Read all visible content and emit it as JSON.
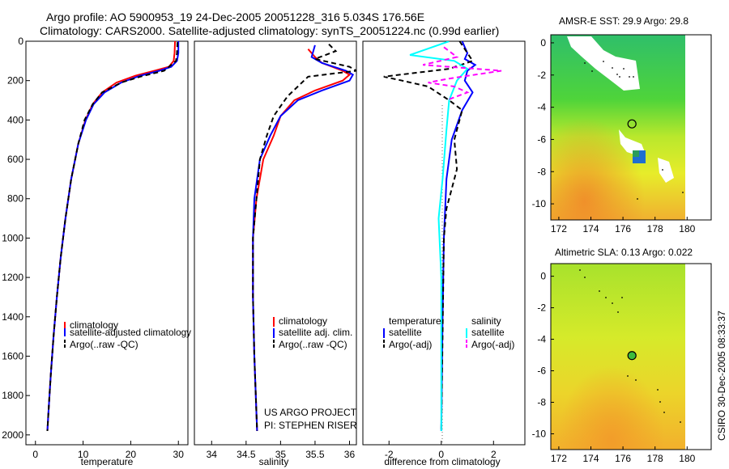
{
  "figure": {
    "title_line1": "Argo profile: AO 5900953_19 24-Dec-2005 20051228_316 5.034S 176.56E",
    "title_line2": "Climatology: CARS2000. Satellite-adjusted climatology: synTS_20051224.nc (0.99d earlier)",
    "credit": "CSIRO 30-Dec-2005 08:33:37",
    "project_line1": "US ARGO PROJECT",
    "project_line2": "PI: STEPHEN RISER"
  },
  "colors": {
    "climatology": "#ff0000",
    "satellite": "#0000ff",
    "argo": "#000000",
    "sat_diff_sal": "#00ffff",
    "argo_diff_sal": "#ff00ff"
  },
  "chart_data": [
    {
      "id": "temperature",
      "type": "line",
      "xlabel": "temperature",
      "ylabel": "",
      "xlim": [
        -2,
        32
      ],
      "ylim": [
        2050,
        0
      ],
      "xticks": [
        0,
        10,
        20,
        30
      ],
      "yticks": [
        0,
        200,
        400,
        600,
        800,
        1000,
        1200,
        1400,
        1600,
        1800,
        2000
      ],
      "legend": [
        "climatology",
        "satellite-adjusted climatology",
        "Argo(..raw -QC)"
      ],
      "series": [
        {
          "name": "climatology",
          "color": "#ff0000",
          "dash": "",
          "points": [
            [
              29.3,
              0
            ],
            [
              29.2,
              60
            ],
            [
              29.0,
              100
            ],
            [
              28,
              130
            ],
            [
              25,
              150
            ],
            [
              21,
              175
            ],
            [
              17,
              210
            ],
            [
              14,
              260
            ],
            [
              12,
              320
            ],
            [
              10.5,
              400
            ],
            [
              9.0,
              520
            ],
            [
              7.5,
              700
            ],
            [
              6.3,
              900
            ],
            [
              5.3,
              1100
            ],
            [
              4.5,
              1300
            ],
            [
              3.8,
              1500
            ],
            [
              3.2,
              1700
            ],
            [
              2.7,
              1900
            ],
            [
              2.5,
              1980
            ]
          ]
        },
        {
          "name": "satellite-adjusted climatology",
          "color": "#0000ff",
          "dash": "",
          "points": [
            [
              30.0,
              0
            ],
            [
              30.0,
              60
            ],
            [
              29.7,
              100
            ],
            [
              28.5,
              130
            ],
            [
              26,
              150
            ],
            [
              22,
              175
            ],
            [
              18,
              210
            ],
            [
              14.5,
              260
            ],
            [
              12.2,
              320
            ],
            [
              10.6,
              400
            ],
            [
              9.0,
              520
            ],
            [
              7.5,
              700
            ],
            [
              6.3,
              900
            ],
            [
              5.3,
              1100
            ],
            [
              4.5,
              1300
            ],
            [
              3.8,
              1500
            ],
            [
              3.2,
              1700
            ],
            [
              2.7,
              1900
            ],
            [
              2.5,
              1980
            ]
          ]
        },
        {
          "name": "Argo(..raw -QC)",
          "color": "#000000",
          "dash": "6,4",
          "points": [
            [
              29.8,
              5
            ],
            [
              29.7,
              60
            ],
            [
              29.5,
              100
            ],
            [
              27,
              150
            ],
            [
              22,
              180
            ],
            [
              18,
              210
            ],
            [
              14,
              260
            ],
            [
              12,
              320
            ],
            [
              10.3,
              400
            ],
            [
              9.0,
              520
            ],
            [
              7.5,
              700
            ],
            [
              6.3,
              900
            ],
            [
              5.3,
              1100
            ],
            [
              4.5,
              1300
            ],
            [
              3.8,
              1500
            ],
            [
              3.2,
              1700
            ],
            [
              2.7,
              1900
            ],
            [
              2.5,
              1980
            ]
          ]
        }
      ]
    },
    {
      "id": "salinity",
      "type": "line",
      "xlabel": "salinity",
      "ylabel": "",
      "xlim": [
        33.75,
        36.1
      ],
      "ylim": [
        2050,
        0
      ],
      "xticks": [
        34,
        34.5,
        35,
        35.5,
        36
      ],
      "yticks": [],
      "legend": [
        "climatology",
        "satellite adj. clim.",
        "Argo(..raw -QC)"
      ],
      "series": [
        {
          "name": "climatology",
          "color": "#ff0000",
          "dash": "",
          "points": [
            [
              35.4,
              40
            ],
            [
              35.5,
              80
            ],
            [
              35.6,
              110
            ],
            [
              35.9,
              150
            ],
            [
              36.0,
              170
            ],
            [
              35.9,
              200
            ],
            [
              35.5,
              250
            ],
            [
              35.2,
              300
            ],
            [
              35.0,
              380
            ],
            [
              34.9,
              480
            ],
            [
              34.75,
              600
            ],
            [
              34.65,
              800
            ],
            [
              34.6,
              1000
            ],
            [
              34.6,
              1300
            ],
            [
              34.62,
              1600
            ],
            [
              34.66,
              1980
            ]
          ]
        },
        {
          "name": "satellite adj. clim.",
          "color": "#0000ff",
          "dash": "",
          "points": [
            [
              35.5,
              20
            ],
            [
              35.45,
              80
            ],
            [
              35.6,
              110
            ],
            [
              35.95,
              150
            ],
            [
              36.05,
              170
            ],
            [
              36.0,
              200
            ],
            [
              35.6,
              250
            ],
            [
              35.25,
              300
            ],
            [
              35.0,
              380
            ],
            [
              34.85,
              480
            ],
            [
              34.7,
              600
            ],
            [
              34.62,
              800
            ],
            [
              34.6,
              1000
            ],
            [
              34.6,
              1300
            ],
            [
              34.62,
              1600
            ],
            [
              34.66,
              1980
            ]
          ]
        },
        {
          "name": "Argo(..raw -QC)",
          "color": "#000000",
          "dash": "6,4",
          "points": [
            [
              35.7,
              15
            ],
            [
              35.8,
              50
            ],
            [
              35.5,
              90
            ],
            [
              36.0,
              130
            ],
            [
              36.1,
              150
            ],
            [
              35.4,
              180
            ],
            [
              35.1,
              280
            ],
            [
              34.9,
              380
            ],
            [
              34.8,
              480
            ],
            [
              34.7,
              600
            ],
            [
              34.65,
              800
            ],
            [
              34.6,
              1000
            ],
            [
              34.6,
              1300
            ],
            [
              34.62,
              1600
            ],
            [
              34.66,
              1980
            ]
          ]
        }
      ]
    },
    {
      "id": "difference",
      "type": "line",
      "xlabel": "difference from climatology",
      "ylabel": "",
      "xlim": [
        -3.0,
        3.2
      ],
      "ylim": [
        2050,
        0
      ],
      "xticks": [
        -2,
        0,
        2
      ],
      "yticks": [],
      "legend_temperature_title": "temperature",
      "legend_salinity_title": "salinity",
      "legend_entries": [
        "satellite",
        "Argo(-adj)",
        "satellite",
        "Argo(-adj)"
      ],
      "series": [
        {
          "name": "temperature satellite",
          "color": "#0000ff",
          "dash": "",
          "points": [
            [
              0.8,
              0
            ],
            [
              1.0,
              60
            ],
            [
              0.9,
              90
            ],
            [
              1.3,
              120
            ],
            [
              1.0,
              150
            ],
            [
              0.9,
              200
            ],
            [
              1.2,
              260
            ],
            [
              0.8,
              350
            ],
            [
              0.4,
              500
            ],
            [
              0.2,
              700
            ],
            [
              0.1,
              1000
            ],
            [
              0.05,
              1400
            ],
            [
              0,
              1980
            ]
          ]
        },
        {
          "name": "temperature Argo(-adj)",
          "color": "#000000",
          "dash": "6,4",
          "points": [
            [
              0.7,
              0
            ],
            [
              1.2,
              100
            ],
            [
              0.3,
              140
            ],
            [
              -2.2,
              180
            ],
            [
              -1.5,
              200
            ],
            [
              -0.5,
              230
            ],
            [
              0.3,
              300
            ],
            [
              0.8,
              350
            ],
            [
              0.6,
              450
            ],
            [
              0.5,
              500
            ],
            [
              0.6,
              650
            ],
            [
              0.4,
              750
            ],
            [
              0.2,
              850
            ],
            [
              0.1,
              1000
            ],
            [
              0,
              1980
            ]
          ]
        },
        {
          "name": "salinity satellite",
          "color": "#00ffff",
          "dash": "",
          "points": [
            [
              0.3,
              0
            ],
            [
              -1.2,
              70
            ],
            [
              0.5,
              100
            ],
            [
              1.0,
              140
            ],
            [
              0.6,
              200
            ],
            [
              0.3,
              300
            ],
            [
              0.2,
              450
            ],
            [
              0.05,
              700
            ],
            [
              -0.1,
              900
            ],
            [
              0,
              1200
            ],
            [
              0,
              1980
            ]
          ]
        },
        {
          "name": "salinity Argo(-adj)",
          "color": "#ff00ff",
          "dash": "6,4",
          "points": [
            [
              0.1,
              30
            ],
            [
              0.6,
              80
            ],
            [
              -0.7,
              120
            ],
            [
              2.3,
              150
            ],
            [
              0.3,
              190
            ],
            [
              -0.5,
              210
            ],
            [
              0.5,
              230
            ],
            [
              1.0,
              260
            ],
            [
              0.2,
              300
            ]
          ]
        }
      ]
    },
    {
      "id": "sst_map",
      "type": "heatmap",
      "title": "AMSR-E SST: 29.9 Argo: 29.8",
      "xlim": [
        171.5,
        181.5
      ],
      "ylim": [
        -11,
        0.5
      ],
      "xticks": [
        172,
        174,
        176,
        178,
        180
      ],
      "yticks": [
        0,
        -2,
        -4,
        -6,
        -8,
        -10
      ],
      "argo_position": [
        176.56,
        -5.034
      ]
    },
    {
      "id": "sla_map",
      "type": "heatmap",
      "title": "Altimetric SLA: 0.13 Argo: 0.022",
      "xlim": [
        171.5,
        181.5
      ],
      "ylim": [
        -11,
        0.8
      ],
      "xticks": [
        172,
        174,
        176,
        178,
        180
      ],
      "yticks": [
        0,
        -2,
        -4,
        -6,
        -8,
        -10
      ],
      "argo_position": [
        176.56,
        -5.034
      ]
    }
  ]
}
